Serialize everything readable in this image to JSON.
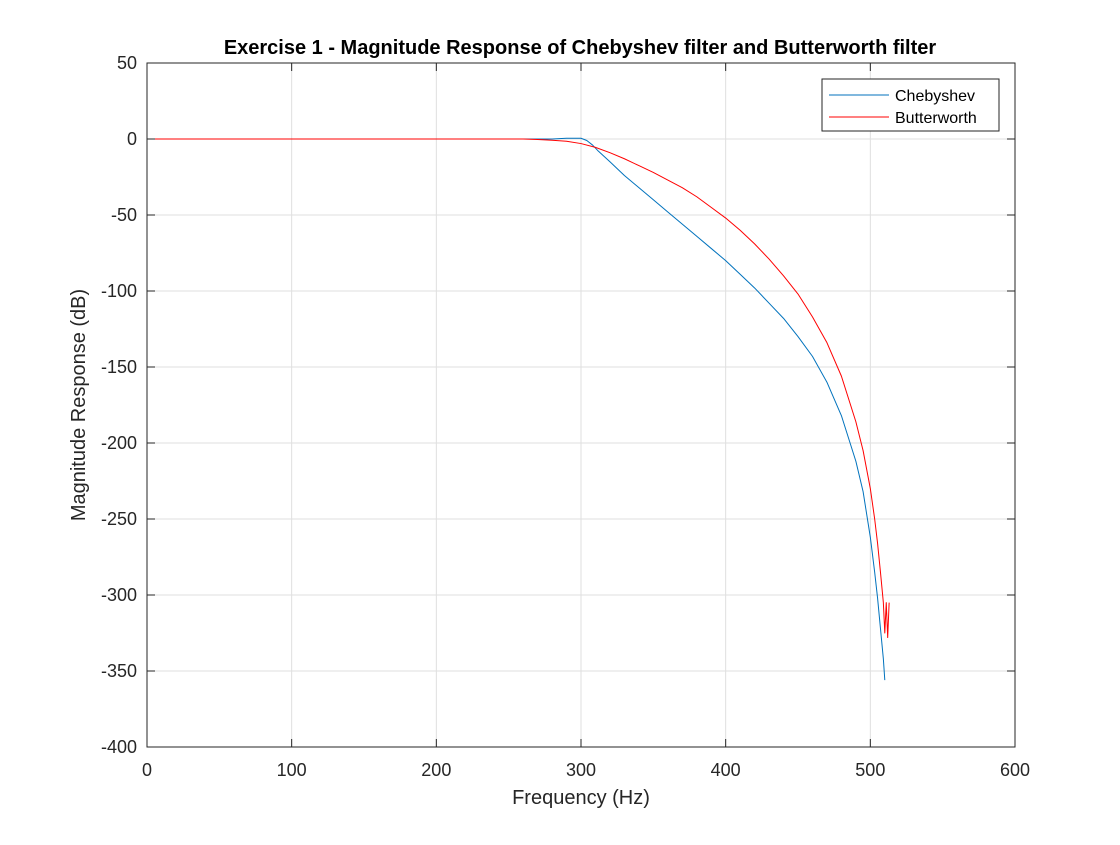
{
  "chart_data": {
    "type": "line",
    "title": "Exercise 1 - Magnitude Response of Chebyshev filter and Butterworth filter",
    "xlabel": "Frequency (Hz)",
    "ylabel": "Magnitude Response (dB)",
    "xlim": [
      0,
      600
    ],
    "ylim": [
      -400,
      50
    ],
    "xticks": [
      0,
      100,
      200,
      300,
      400,
      500,
      600
    ],
    "yticks": [
      -400,
      -350,
      -300,
      -250,
      -200,
      -150,
      -100,
      -50,
      0,
      50
    ],
    "grid": true,
    "legend_position": "top-right",
    "series": [
      {
        "name": "Chebyshev",
        "color": "#0072BD",
        "x": [
          0,
          100,
          200,
          260,
          280,
          290,
          300,
          304,
          308,
          312,
          320,
          330,
          340,
          350,
          360,
          370,
          380,
          390,
          400,
          410,
          420,
          430,
          440,
          450,
          460,
          470,
          480,
          490,
          495,
          500,
          503,
          505,
          507,
          509,
          510
        ],
        "y": [
          0,
          0,
          0,
          0,
          0,
          0.5,
          0.5,
          -1,
          -4,
          -8,
          -15,
          -24,
          -32,
          -40,
          -48,
          -56,
          -64,
          -72,
          -80,
          -89,
          -98,
          -108,
          -118,
          -130,
          -143,
          -160,
          -182,
          -212,
          -232,
          -262,
          -285,
          -302,
          -322,
          -342,
          -356
        ]
      },
      {
        "name": "Butterworth",
        "color": "#FF0000",
        "x": [
          0,
          100,
          200,
          260,
          270,
          280,
          290,
          300,
          310,
          320,
          330,
          340,
          350,
          360,
          370,
          380,
          390,
          400,
          410,
          420,
          430,
          440,
          450,
          460,
          470,
          480,
          490,
          495,
          500,
          503,
          505,
          507,
          509,
          510,
          511,
          512,
          513
        ],
        "y": [
          0,
          0,
          0,
          0,
          -0.3,
          -0.8,
          -1.5,
          -3,
          -5.5,
          -9,
          -13,
          -17.5,
          -22,
          -27,
          -32,
          -38,
          -45,
          -52,
          -60,
          -69,
          -79,
          -90,
          -102,
          -117,
          -134,
          -156,
          -186,
          -205,
          -230,
          -250,
          -266,
          -285,
          -305,
          -325,
          -305,
          -328,
          -305
        ]
      }
    ]
  }
}
